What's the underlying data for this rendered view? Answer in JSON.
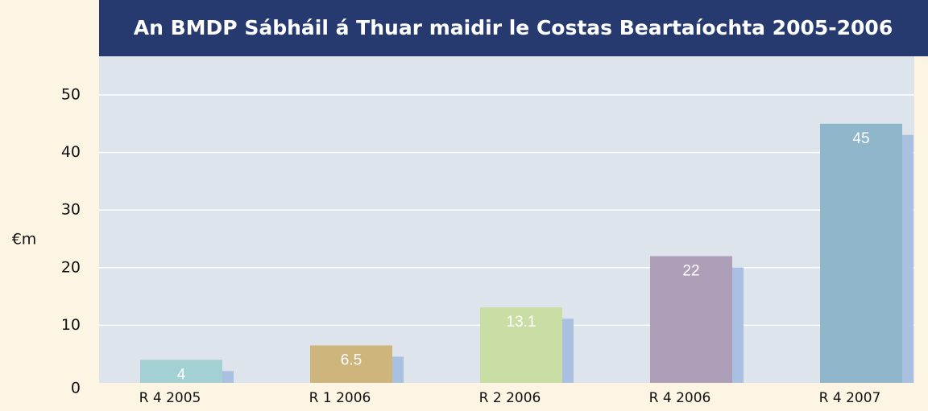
{
  "chart_data": {
    "type": "bar",
    "title": "An BMDP Sábháil á Thuar maidir le Costas Beartaíochta 2005-2006",
    "y_label": "€m",
    "categories": [
      "R 4 2005",
      "R 1 2006",
      "R 2 2006",
      "R 4 2006",
      "R 4 2007"
    ],
    "values": [
      4,
      6.5,
      13.1,
      22,
      45
    ],
    "colors": [
      "#a3d0d3",
      "#cdb57c",
      "#c9dea4",
      "#ae9fb9",
      "#8fb6cb"
    ],
    "ylim": [
      0,
      50
    ],
    "yticks": [
      0,
      10,
      20,
      30,
      40,
      50
    ],
    "grid": true
  }
}
